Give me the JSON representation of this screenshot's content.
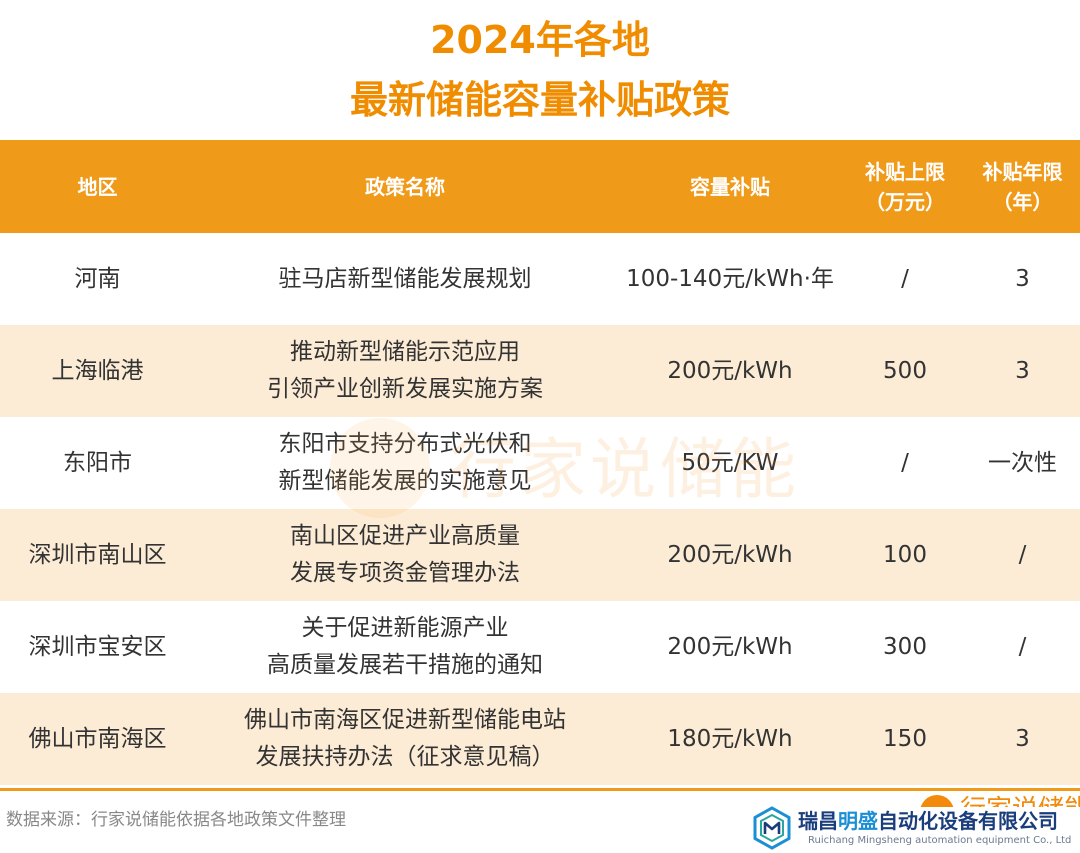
{
  "title": {
    "line1": "2024年各地",
    "line2": "最新储能容量补贴政策"
  },
  "table": {
    "headers": {
      "region": "地区",
      "policy": "政策名称",
      "subsidy": "容量补贴",
      "cap_line1": "补贴上限",
      "cap_line2": "（万元）",
      "years_line1": "补贴年限",
      "years_line2": "（年）"
    },
    "rows": [
      {
        "region": "河南",
        "policy": [
          "驻马店新型储能发展规划"
        ],
        "subsidy": "100-140元/kWh·年",
        "cap": "/",
        "years": "3"
      },
      {
        "region": "上海临港",
        "policy": [
          "推动新型储能示范应用",
          "引领产业创新发展实施方案"
        ],
        "subsidy": "200元/kWh",
        "cap": "500",
        "years": "3"
      },
      {
        "region": "东阳市",
        "policy": [
          "东阳市支持分布式光伏和",
          "新型储能发展的实施意见"
        ],
        "subsidy": "50元/KW",
        "cap": "/",
        "years": "一次性"
      },
      {
        "region": "深圳市南山区",
        "policy": [
          "南山区促进产业高质量",
          "发展专项资金管理办法"
        ],
        "subsidy": "200元/kWh",
        "cap": "100",
        "years": "/"
      },
      {
        "region": "深圳市宝安区",
        "policy": [
          "关于促进新能源产业",
          "高质量发展若干措施的通知"
        ],
        "subsidy": "200元/kWh",
        "cap": "300",
        "years": "/"
      },
      {
        "region": "佛山市南海区",
        "policy": [
          "佛山市南海区促进新型储能电站",
          "发展扶持办法（征求意见稿）"
        ],
        "subsidy": "180元/kWh",
        "cap": "150",
        "years": "3"
      }
    ]
  },
  "watermark": "行家说储能",
  "source": "数据来源：行家说储能依据各地政策文件整理",
  "brand_peek": "行家说储能",
  "company": {
    "name_part1": "瑞昌",
    "name_accent": "明盛",
    "name_part2": "自动化设备有限公司",
    "english": "Ruichang Mingsheng automation equipment Co., Ltd"
  },
  "colors": {
    "accent": "#f09a1a",
    "title": "#f08c00",
    "alt_row": "#fcecd6",
    "brand_blue": "#1a3d7c"
  }
}
